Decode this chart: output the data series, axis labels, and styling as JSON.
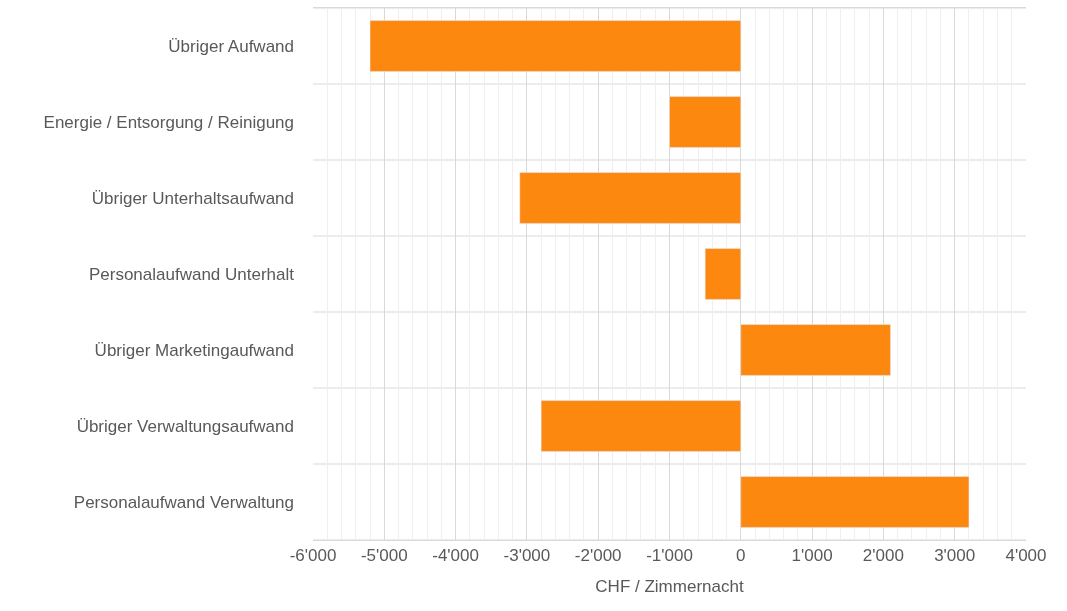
{
  "chart_data": {
    "type": "bar",
    "orientation": "horizontal",
    "xlabel": "CHF / Zimmernacht",
    "categories": [
      "Übriger Aufwand",
      "Energie / Entsorgung / Reinigung",
      "Übriger Unterhaltsaufwand",
      "Personalaufwand Unterhalt",
      "Übriger Marketingaufwand",
      "Übriger Verwaltungsaufwand",
      "Personalaufwand Verwaltung"
    ],
    "values": [
      -5200,
      -1000,
      -3100,
      -500,
      2100,
      -2800,
      3200
    ],
    "color": "#fd8810",
    "xlim": [
      -6000,
      4000
    ],
    "xticks": [
      {
        "value": -6000,
        "label": "-6'000"
      },
      {
        "value": -5000,
        "label": "-5'000"
      },
      {
        "value": -4000,
        "label": "-4'000"
      },
      {
        "value": -3000,
        "label": "-3'000"
      },
      {
        "value": -2000,
        "label": "-2'000"
      },
      {
        "value": -1000,
        "label": "-1'000"
      },
      0,
      {
        "value": 1000,
        "label": "1'000"
      },
      {
        "value": 2000,
        "label": "2'000"
      },
      {
        "value": 3000,
        "label": "3'000"
      },
      {
        "value": 4000,
        "label": "4'000"
      }
    ],
    "grid": true
  }
}
